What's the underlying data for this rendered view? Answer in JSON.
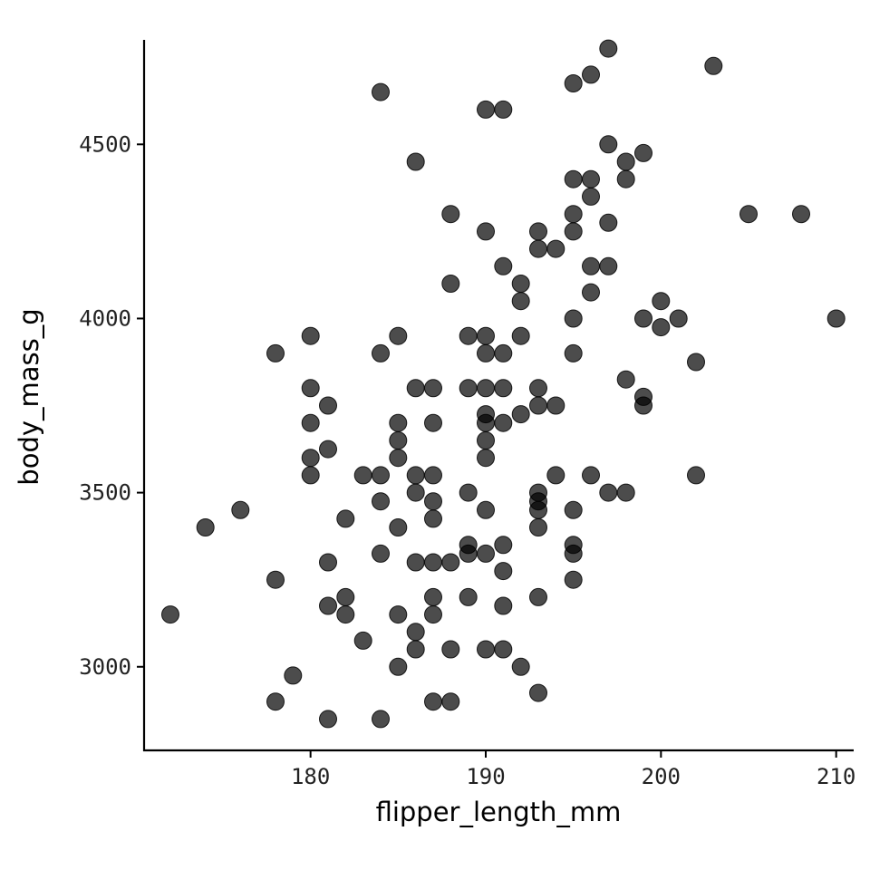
{
  "chart_data": {
    "type": "scatter",
    "title": "",
    "xlabel": "flipper_length_mm",
    "ylabel": "body_mass_g",
    "xlim": [
      170.5,
      211
    ],
    "ylim": [
      2760,
      4800
    ],
    "xticks": [
      180,
      190,
      200,
      210
    ],
    "yticks": [
      3000,
      3500,
      4000,
      4500
    ],
    "grid": false,
    "legend": "none",
    "point_color": "#000000",
    "point_opacity": 0.7,
    "points": [
      [
        172,
        3150
      ],
      [
        174,
        3400
      ],
      [
        176,
        3450
      ],
      [
        178,
        3900
      ],
      [
        178,
        3250
      ],
      [
        178,
        2900
      ],
      [
        179,
        2975
      ],
      [
        180,
        3950
      ],
      [
        180,
        3800
      ],
      [
        180,
        3700
      ],
      [
        180,
        3600
      ],
      [
        180,
        3550
      ],
      [
        181,
        3750
      ],
      [
        181,
        3625
      ],
      [
        181,
        3300
      ],
      [
        181,
        3175
      ],
      [
        181,
        2850
      ],
      [
        182,
        3425
      ],
      [
        182,
        3200
      ],
      [
        182,
        3150
      ],
      [
        183,
        3550
      ],
      [
        183,
        3075
      ],
      [
        184,
        4650
      ],
      [
        184,
        3900
      ],
      [
        184,
        3550
      ],
      [
        184,
        3475
      ],
      [
        184,
        3325
      ],
      [
        184,
        2850
      ],
      [
        185,
        3950
      ],
      [
        185,
        3700
      ],
      [
        185,
        3650
      ],
      [
        185,
        3600
      ],
      [
        185,
        3400
      ],
      [
        185,
        3150
      ],
      [
        185,
        3000
      ],
      [
        186,
        4450
      ],
      [
        186,
        3800
      ],
      [
        186,
        3550
      ],
      [
        186,
        3500
      ],
      [
        186,
        3300
      ],
      [
        186,
        3100
      ],
      [
        186,
        3050
      ],
      [
        187,
        3800
      ],
      [
        187,
        3700
      ],
      [
        187,
        3550
      ],
      [
        187,
        3475
      ],
      [
        187,
        3425
      ],
      [
        187,
        3300
      ],
      [
        187,
        3200
      ],
      [
        187,
        3150
      ],
      [
        187,
        2900
      ],
      [
        188,
        4300
      ],
      [
        188,
        4100
      ],
      [
        188,
        3300
      ],
      [
        188,
        3050
      ],
      [
        188,
        2900
      ],
      [
        189,
        3950
      ],
      [
        189,
        3800
      ],
      [
        189,
        3500
      ],
      [
        189,
        3350
      ],
      [
        189,
        3325
      ],
      [
        189,
        3200
      ],
      [
        190,
        4600
      ],
      [
        190,
        4250
      ],
      [
        190,
        3950
      ],
      [
        190,
        3900
      ],
      [
        190,
        3800
      ],
      [
        190,
        3725
      ],
      [
        190,
        3700
      ],
      [
        190,
        3650
      ],
      [
        190,
        3600
      ],
      [
        190,
        3450
      ],
      [
        190,
        3325
      ],
      [
        190,
        3050
      ],
      [
        191,
        4600
      ],
      [
        191,
        4150
      ],
      [
        191,
        3900
      ],
      [
        191,
        3800
      ],
      [
        191,
        3700
      ],
      [
        191,
        3350
      ],
      [
        191,
        3275
      ],
      [
        191,
        3175
      ],
      [
        191,
        3050
      ],
      [
        192,
        4100
      ],
      [
        192,
        4050
      ],
      [
        192,
        3950
      ],
      [
        192,
        3725
      ],
      [
        192,
        3000
      ],
      [
        193,
        4250
      ],
      [
        193,
        4200
      ],
      [
        193,
        3800
      ],
      [
        193,
        3750
      ],
      [
        193,
        3500
      ],
      [
        193,
        3475
      ],
      [
        193,
        3450
      ],
      [
        193,
        3400
      ],
      [
        193,
        3200
      ],
      [
        193,
        2925
      ],
      [
        194,
        4200
      ],
      [
        194,
        3750
      ],
      [
        194,
        3550
      ],
      [
        195,
        4675
      ],
      [
        195,
        4400
      ],
      [
        195,
        4300
      ],
      [
        195,
        4250
      ],
      [
        195,
        4000
      ],
      [
        195,
        3900
      ],
      [
        195,
        3450
      ],
      [
        195,
        3350
      ],
      [
        195,
        3325
      ],
      [
        195,
        3250
      ],
      [
        196,
        4700
      ],
      [
        196,
        4400
      ],
      [
        196,
        4350
      ],
      [
        196,
        4150
      ],
      [
        196,
        4075
      ],
      [
        196,
        3550
      ],
      [
        197,
        4775
      ],
      [
        197,
        4500
      ],
      [
        197,
        4275
      ],
      [
        197,
        4150
      ],
      [
        197,
        3500
      ],
      [
        198,
        4450
      ],
      [
        198,
        4400
      ],
      [
        198,
        3825
      ],
      [
        198,
        3500
      ],
      [
        199,
        4475
      ],
      [
        199,
        4000
      ],
      [
        199,
        3775
      ],
      [
        199,
        3750
      ],
      [
        200,
        4050
      ],
      [
        200,
        3975
      ],
      [
        201,
        4000
      ],
      [
        202,
        3875
      ],
      [
        202,
        3550
      ],
      [
        203,
        4725
      ],
      [
        205,
        4300
      ],
      [
        208,
        4300
      ],
      [
        210,
        4000
      ]
    ]
  }
}
